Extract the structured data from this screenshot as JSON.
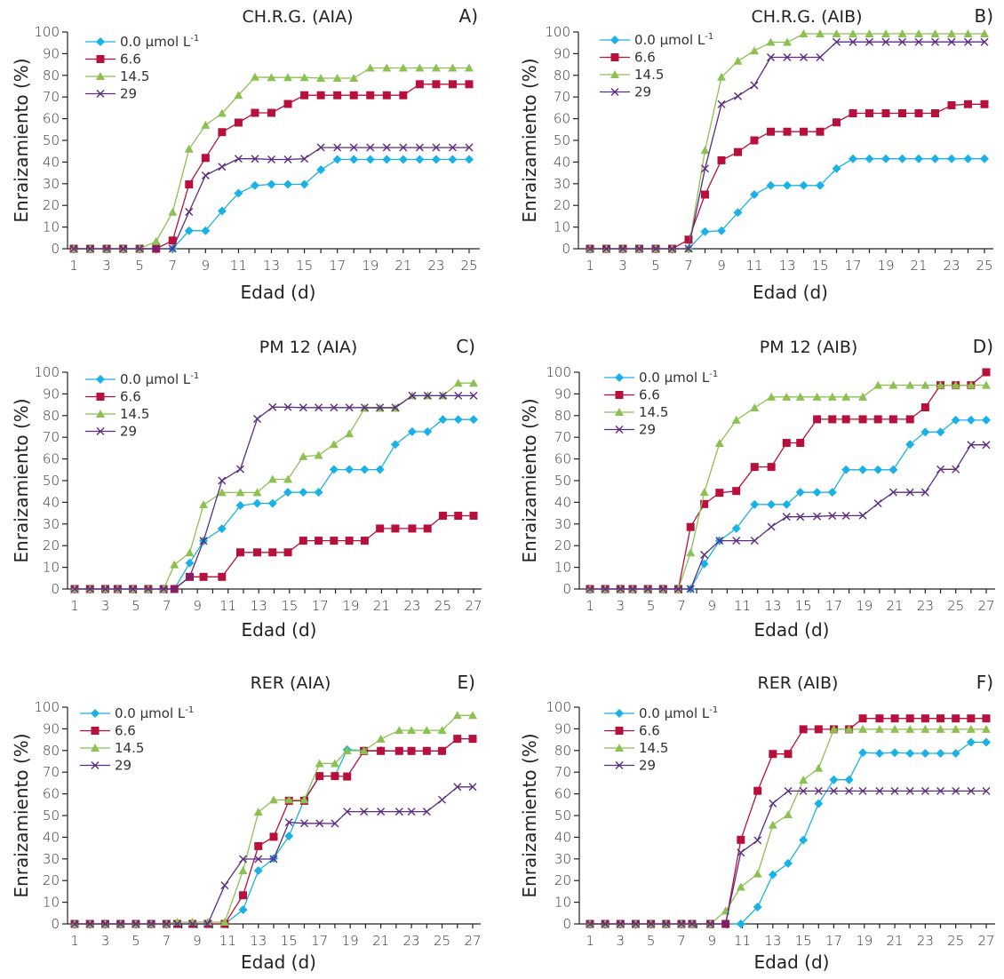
{
  "figure": {
    "legend_unit_suffix": "µmol L",
    "legend_unit_superscript": "-1"
  },
  "series_styles": [
    {
      "name": "0.0 µmol L-1",
      "label": "0.0 µmol L",
      "sup": "-1",
      "marker": "diamond",
      "color": "#1ab2e6"
    },
    {
      "name": "6.6",
      "label": "6.6",
      "sup": "",
      "marker": "square",
      "color": "#b8103c"
    },
    {
      "name": "14.5",
      "label": "14.5",
      "sup": "",
      "marker": "triangle",
      "color": "#8cc152"
    },
    {
      "name": "29",
      "label": "29",
      "sup": "",
      "marker": "x",
      "color": "#5b2c83"
    }
  ],
  "chart_data": [
    {
      "type": "line",
      "panel": "A)",
      "title": "CH.R.G. (AIA)",
      "xlabel": "Edad (d)",
      "ylabel": "Enraizamiento (%)",
      "xlim": [
        1,
        25
      ],
      "ylim": [
        0,
        100
      ],
      "xticks": [
        1,
        3,
        5,
        7,
        9,
        11,
        13,
        15,
        17,
        19,
        21,
        23,
        25
      ],
      "yticks": [
        0,
        10,
        20,
        30,
        40,
        50,
        60,
        70,
        80,
        90,
        100
      ],
      "legend": "top-left",
      "grid": false,
      "x": [
        1,
        2,
        3,
        4,
        5,
        6,
        7,
        8,
        9,
        10,
        11,
        12,
        13,
        14,
        15,
        16,
        17,
        18,
        19,
        20,
        21,
        22,
        23,
        24,
        25
      ],
      "series": [
        {
          "name": "0.0 µmol L-1",
          "values": [
            0,
            0,
            0,
            0,
            0,
            0,
            0,
            8.3,
            8.3,
            17.4,
            25.6,
            29.2,
            29.7,
            29.7,
            29.7,
            36.4,
            41.2,
            41.2,
            41.2,
            41.2,
            41.2,
            41.2,
            41.2,
            41.2,
            41.2
          ]
        },
        {
          "name": "6.6",
          "values": [
            0,
            0,
            0,
            0,
            0,
            0,
            3.8,
            29.7,
            41.9,
            53.8,
            58.2,
            62.7,
            62.7,
            66.8,
            70.8,
            70.8,
            70.8,
            70.8,
            70.8,
            70.8,
            70.8,
            75.9,
            75.9,
            75.9,
            75.9
          ]
        },
        {
          "name": "14.5",
          "values": [
            0,
            0,
            0,
            0,
            0,
            3.4,
            16.9,
            46.0,
            57.0,
            62.5,
            70.8,
            79.2,
            79.0,
            79.0,
            79.0,
            78.7,
            78.7,
            78.7,
            83.4,
            83.4,
            83.4,
            83.4,
            83.4,
            83.4,
            83.4
          ]
        },
        {
          "name": "29",
          "values": [
            0,
            0,
            0,
            0,
            0,
            0,
            0,
            17.0,
            33.8,
            37.8,
            41.5,
            41.5,
            41.2,
            41.2,
            41.5,
            46.7,
            46.7,
            46.7,
            46.7,
            46.7,
            46.7,
            46.7,
            46.7,
            46.7,
            46.7
          ]
        }
      ]
    },
    {
      "type": "line",
      "panel": "B)",
      "title": "CH.R.G. (AIB)",
      "xlabel": "Edad (d)",
      "ylabel": "Enraizamiento (%)",
      "xlim": [
        1,
        25
      ],
      "ylim": [
        0,
        100
      ],
      "xticks": [
        1,
        3,
        5,
        7,
        9,
        11,
        13,
        15,
        17,
        19,
        21,
        23,
        25
      ],
      "yticks": [
        0,
        10,
        20,
        30,
        40,
        50,
        60,
        70,
        80,
        90,
        100
      ],
      "legend": "top-left",
      "grid": false,
      "x": [
        1,
        2,
        3,
        4,
        5,
        6,
        7,
        8,
        9,
        10,
        11,
        12,
        13,
        14,
        15,
        16,
        17,
        18,
        19,
        20,
        21,
        22,
        23,
        24,
        25
      ],
      "series": [
        {
          "name": "0.0 µmol L-1",
          "values": [
            0,
            0,
            0,
            0,
            0,
            0,
            0,
            7.9,
            8.3,
            16.7,
            25.0,
            29.2,
            29.2,
            29.2,
            29.2,
            37.0,
            41.5,
            41.5,
            41.5,
            41.5,
            41.5,
            41.5,
            41.5,
            41.5,
            41.5
          ]
        },
        {
          "name": "6.6",
          "values": [
            0,
            0,
            0,
            0,
            0,
            0,
            4.2,
            25.0,
            40.8,
            44.6,
            50.0,
            54.0,
            54.0,
            54.0,
            54.0,
            58.3,
            62.5,
            62.5,
            62.5,
            62.5,
            62.5,
            62.5,
            66.2,
            66.7,
            66.7
          ]
        },
        {
          "name": "14.5",
          "values": [
            0,
            0,
            0,
            0,
            0,
            0,
            0,
            45.4,
            79.2,
            86.6,
            91.3,
            95.3,
            95.3,
            99.2,
            99.2,
            99.2,
            99.2,
            99.2,
            99.2,
            99.2,
            99.2,
            99.2,
            99.2,
            99.2,
            99.2
          ]
        },
        {
          "name": "29",
          "values": [
            0,
            0,
            0,
            0,
            0,
            0,
            0,
            37.0,
            66.7,
            70.4,
            75.4,
            88.3,
            88.3,
            88.3,
            88.3,
            95.4,
            95.4,
            95.4,
            95.4,
            95.4,
            95.4,
            95.4,
            95.4,
            95.4,
            95.4
          ]
        }
      ]
    },
    {
      "type": "line",
      "panel": "C)",
      "title": "PM 12 (AIA)",
      "xlabel": "Edad (d)",
      "ylabel": "Enraizamiento (%)",
      "xlim": [
        1,
        27
      ],
      "ylim": [
        0,
        100
      ],
      "xticks": [
        1,
        3,
        5,
        7,
        9,
        11,
        13,
        15,
        17,
        19,
        21,
        23,
        25,
        27
      ],
      "yticks": [
        0,
        10,
        20,
        30,
        40,
        50,
        60,
        70,
        80,
        90,
        100
      ],
      "legend": "top-left",
      "grid": false,
      "x": [
        1,
        2,
        3,
        3.8,
        4.8,
        5.8,
        6.8,
        7.5,
        8.5,
        9.4,
        10.6,
        11.8,
        12.9,
        13.9,
        14.9,
        15.9,
        16.9,
        17.9,
        18.9,
        19.9,
        20.9,
        21.9,
        23,
        24,
        25,
        26,
        27
      ],
      "series": [
        {
          "name": "0.0 µmol L-1",
          "values": [
            0,
            0,
            0,
            0,
            0,
            0,
            0,
            0,
            12.0,
            22.2,
            27.8,
            38.5,
            39.5,
            39.5,
            44.6,
            44.6,
            44.6,
            55.1,
            55.1,
            55.1,
            55.1,
            66.7,
            72.6,
            72.6,
            78.2,
            78.2,
            78.2
          ]
        },
        {
          "name": "6.6",
          "values": [
            0,
            0,
            0,
            0,
            0,
            0,
            0,
            0,
            5.6,
            5.6,
            5.6,
            16.9,
            16.9,
            16.9,
            16.9,
            22.3,
            22.3,
            22.3,
            22.3,
            22.3,
            27.9,
            27.9,
            27.9,
            27.9,
            33.8,
            33.8,
            33.8
          ]
        },
        {
          "name": "14.5",
          "values": [
            0,
            0,
            0,
            0,
            0,
            0,
            0,
            11.2,
            16.7,
            38.9,
            44.5,
            44.5,
            44.5,
            50.6,
            50.6,
            61.1,
            61.7,
            66.7,
            71.6,
            83.4,
            83.4,
            83.4,
            89.2,
            89.2,
            89.2,
            95.0,
            95.0
          ]
        },
        {
          "name": "29",
          "values": [
            0,
            0,
            0,
            0,
            0,
            0,
            0,
            0,
            5.6,
            22.2,
            50.0,
            55.3,
            78.5,
            83.9,
            83.9,
            83.7,
            83.7,
            83.7,
            83.7,
            83.7,
            83.7,
            83.7,
            89.2,
            89.2,
            89.2,
            89.2,
            89.2
          ]
        }
      ]
    },
    {
      "type": "line",
      "panel": "D)",
      "title": "PM 12 (AIB)",
      "xlabel": "Edad (d)",
      "ylabel": "Enraizamiento (%)",
      "xlim": [
        1,
        27
      ],
      "ylim": [
        0,
        100
      ],
      "xticks": [
        1,
        3,
        5,
        7,
        9,
        11,
        13,
        15,
        17,
        19,
        21,
        23,
        25,
        27
      ],
      "yticks": [
        0,
        10,
        20,
        30,
        40,
        50,
        60,
        70,
        80,
        90,
        100
      ],
      "legend": "top-left",
      "grid": false,
      "x": [
        1,
        2,
        3,
        3.8,
        4.8,
        5.8,
        6.8,
        7.6,
        8.5,
        9.5,
        10.6,
        11.8,
        12.9,
        13.9,
        14.8,
        15.9,
        16.9,
        17.8,
        18.9,
        19.9,
        20.9,
        22.0,
        23.0,
        24.0,
        25.0,
        26.0,
        27.0
      ],
      "series": [
        {
          "name": "0.0 µmol L-1",
          "values": [
            0,
            0,
            0,
            0,
            0,
            0,
            0,
            0,
            11.6,
            22.3,
            27.9,
            39.0,
            39.0,
            39.0,
            44.6,
            44.6,
            44.6,
            55.0,
            55.0,
            55.0,
            55.0,
            66.7,
            72.4,
            72.4,
            77.9,
            77.9,
            77.9
          ]
        },
        {
          "name": "6.6",
          "values": [
            0,
            0,
            0,
            0,
            0,
            0,
            0,
            28.6,
            39.2,
            44.4,
            45.2,
            56.3,
            56.3,
            67.4,
            67.4,
            78.3,
            78.3,
            78.3,
            78.3,
            78.3,
            78.3,
            78.3,
            83.8,
            94.0,
            94.0,
            94.0,
            100
          ]
        },
        {
          "name": "14.5",
          "values": [
            0,
            0,
            0,
            0,
            0,
            0,
            0,
            16.7,
            44.6,
            67.2,
            77.9,
            83.6,
            88.6,
            88.6,
            88.6,
            88.6,
            88.6,
            88.6,
            88.6,
            94.0,
            94.0,
            94.0,
            94.0,
            94.0,
            94.0,
            94.0,
            94.0
          ]
        },
        {
          "name": "29",
          "values": [
            0,
            0,
            0,
            0,
            0,
            0,
            0,
            0,
            15.8,
            22.3,
            22.3,
            22.3,
            28.7,
            33.3,
            33.3,
            33.5,
            33.8,
            33.8,
            33.9,
            39.5,
            44.6,
            44.6,
            44.6,
            55.2,
            55.2,
            66.5,
            66.5
          ]
        }
      ]
    },
    {
      "type": "line",
      "panel": "E)",
      "title": "RER (AIA)",
      "xlabel": "Edad (d)",
      "ylabel": "Enraizamiento (%)",
      "xlim": [
        1,
        27
      ],
      "ylim": [
        0,
        100
      ],
      "xticks": [
        1,
        3,
        5,
        7,
        9,
        11,
        13,
        15,
        17,
        19,
        21,
        23,
        25,
        27
      ],
      "yticks": [
        0,
        10,
        20,
        30,
        40,
        50,
        60,
        70,
        80,
        90,
        100
      ],
      "legend": "top-left",
      "grid": false,
      "x": [
        1,
        2,
        3,
        4,
        5,
        6,
        7,
        7.7,
        8.7,
        9.7,
        10.8,
        12,
        13,
        14,
        15,
        16,
        17,
        18,
        18.8,
        19.9,
        21,
        22.2,
        23,
        24,
        25,
        26,
        27
      ],
      "series": [
        {
          "name": "0.0 µmol L-1",
          "values": [
            0,
            0,
            0,
            0,
            0,
            0,
            0,
            0,
            0,
            0,
            0,
            6.5,
            24.6,
            30.2,
            40.5,
            57.3,
            68.2,
            68.2,
            80.4,
            80.0,
            80.0,
            79.8,
            79.8,
            79.8,
            79.8,
            85.4,
            85.4
          ]
        },
        {
          "name": "6.6",
          "values": [
            0,
            0,
            0,
            0,
            0,
            0,
            0,
            0,
            0,
            0,
            0,
            13.2,
            35.9,
            40.2,
            56.8,
            56.8,
            68.2,
            68.2,
            68.0,
            79.8,
            79.8,
            79.8,
            79.8,
            79.8,
            79.8,
            85.4,
            85.4
          ]
        },
        {
          "name": "14.5",
          "values": [
            0,
            0,
            0,
            0,
            0,
            0,
            0,
            0.8,
            0.8,
            0.8,
            0.8,
            24.6,
            51.6,
            57.2,
            57.2,
            57.2,
            74.0,
            74.0,
            79.9,
            79.9,
            85.3,
            89.3,
            89.3,
            89.3,
            89.3,
            96.2,
            96.2
          ]
        },
        {
          "name": "29",
          "values": [
            0,
            0,
            0,
            0,
            0,
            0,
            0,
            0,
            0,
            0,
            17.8,
            29.9,
            29.9,
            29.9,
            46.9,
            46.4,
            46.4,
            46.3,
            51.8,
            51.8,
            51.8,
            51.8,
            51.8,
            51.8,
            57.3,
            63.2,
            63.2
          ]
        }
      ]
    },
    {
      "type": "line",
      "panel": "F)",
      "title": "RER (AIB)",
      "xlabel": "Edad (d)",
      "ylabel": "Enraizamiento (%)",
      "xlim": [
        1,
        27
      ],
      "ylim": [
        0,
        100
      ],
      "xticks": [
        1,
        3,
        5,
        7,
        9,
        11,
        13,
        15,
        17,
        19,
        21,
        23,
        25,
        27
      ],
      "yticks": [
        0,
        10,
        20,
        30,
        40,
        50,
        60,
        70,
        80,
        90,
        100
      ],
      "legend": "top-left",
      "grid": false,
      "x": [
        1,
        2,
        3,
        4,
        5,
        6,
        7,
        7.7,
        8.9,
        9.9,
        10.9,
        12,
        13,
        14,
        15,
        16,
        17,
        18,
        18.9,
        20,
        21,
        22,
        23,
        24,
        25,
        26,
        27
      ],
      "series": [
        {
          "name": "0.0 µmol L-1",
          "values": [
            0,
            0,
            0,
            0,
            0,
            0,
            0,
            0,
            0,
            0,
            0,
            7.8,
            22.7,
            27.9,
            38.7,
            55.5,
            66.5,
            66.5,
            79.0,
            78.7,
            79.0,
            78.7,
            78.7,
            78.7,
            78.7,
            83.8,
            83.8
          ]
        },
        {
          "name": "6.6",
          "values": [
            0,
            0,
            0,
            0,
            0,
            0,
            0,
            0,
            0,
            0,
            38.8,
            61.4,
            78.4,
            78.4,
            89.8,
            89.8,
            89.8,
            89.8,
            94.8,
            94.8,
            94.8,
            94.8,
            94.8,
            94.8,
            94.8,
            94.8,
            94.8
          ]
        },
        {
          "name": "14.5",
          "values": [
            0,
            0,
            0,
            0,
            0,
            0,
            0,
            0,
            0,
            6.0,
            17.0,
            23.1,
            45.6,
            50.4,
            66.4,
            71.8,
            89.8,
            89.8,
            89.8,
            89.8,
            89.8,
            89.8,
            89.8,
            89.8,
            89.8,
            89.8,
            89.8
          ]
        },
        {
          "name": "29",
          "values": [
            0,
            0,
            0,
            0,
            0,
            0,
            0,
            0,
            0,
            0,
            32.9,
            38.6,
            55.6,
            61.3,
            61.3,
            61.3,
            61.3,
            61.3,
            61.3,
            61.3,
            61.3,
            61.3,
            61.3,
            61.3,
            61.3,
            61.3,
            61.3
          ]
        }
      ]
    }
  ]
}
